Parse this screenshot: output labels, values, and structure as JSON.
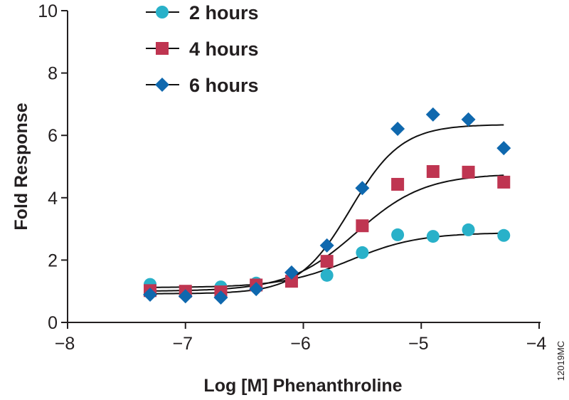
{
  "chart_data": {
    "type": "scatter",
    "title": "",
    "xlabel": "Log [M] Phenanthroline",
    "ylabel": "Fold Response",
    "xlim": [
      -8,
      -4
    ],
    "ylim": [
      0,
      10
    ],
    "xticks": [
      -8,
      -7,
      -6,
      -5,
      -4
    ],
    "xtick_labels": [
      "−8",
      "−7",
      "−6",
      "−5",
      "−4"
    ],
    "yticks": [
      0,
      2,
      4,
      6,
      8,
      10
    ],
    "ytick_labels": [
      "0",
      "2",
      "4",
      "6",
      "8",
      "10"
    ],
    "grid": false,
    "legend_position": "top-left",
    "x": [
      -7.3,
      -7.0,
      -6.7,
      -6.4,
      -6.1,
      -5.8,
      -5.5,
      -5.2,
      -4.9,
      -4.6,
      -4.3
    ],
    "series": [
      {
        "name": "2 hours",
        "marker": "circle",
        "color": "#29b1c9",
        "values": [
          1.22,
          0.98,
          1.14,
          1.26,
          1.38,
          1.51,
          2.24,
          2.81,
          2.76,
          2.97,
          2.79
        ],
        "fit": {
          "bottom": 1.12,
          "top": 2.88,
          "log_ec50": -5.6,
          "hill": 1.5
        }
      },
      {
        "name": "4 hours",
        "marker": "square",
        "color": "#bf3551",
        "values": [
          1.02,
          1.0,
          0.98,
          1.2,
          1.32,
          1.96,
          3.1,
          4.43,
          4.84,
          4.82,
          4.5
        ],
        "fit": {
          "bottom": 1.0,
          "top": 4.77,
          "log_ec50": -5.55,
          "hill": 1.5
        }
      },
      {
        "name": "6 hours",
        "marker": "diamond",
        "color": "#0f68ae",
        "values": [
          0.89,
          0.84,
          0.8,
          1.07,
          1.6,
          2.47,
          4.31,
          6.21,
          6.67,
          6.51,
          5.59
        ],
        "fit": {
          "bottom": 0.92,
          "top": 6.35,
          "log_ec50": -5.6,
          "hill": 2.0
        }
      }
    ]
  },
  "figure_code": "12019MC"
}
